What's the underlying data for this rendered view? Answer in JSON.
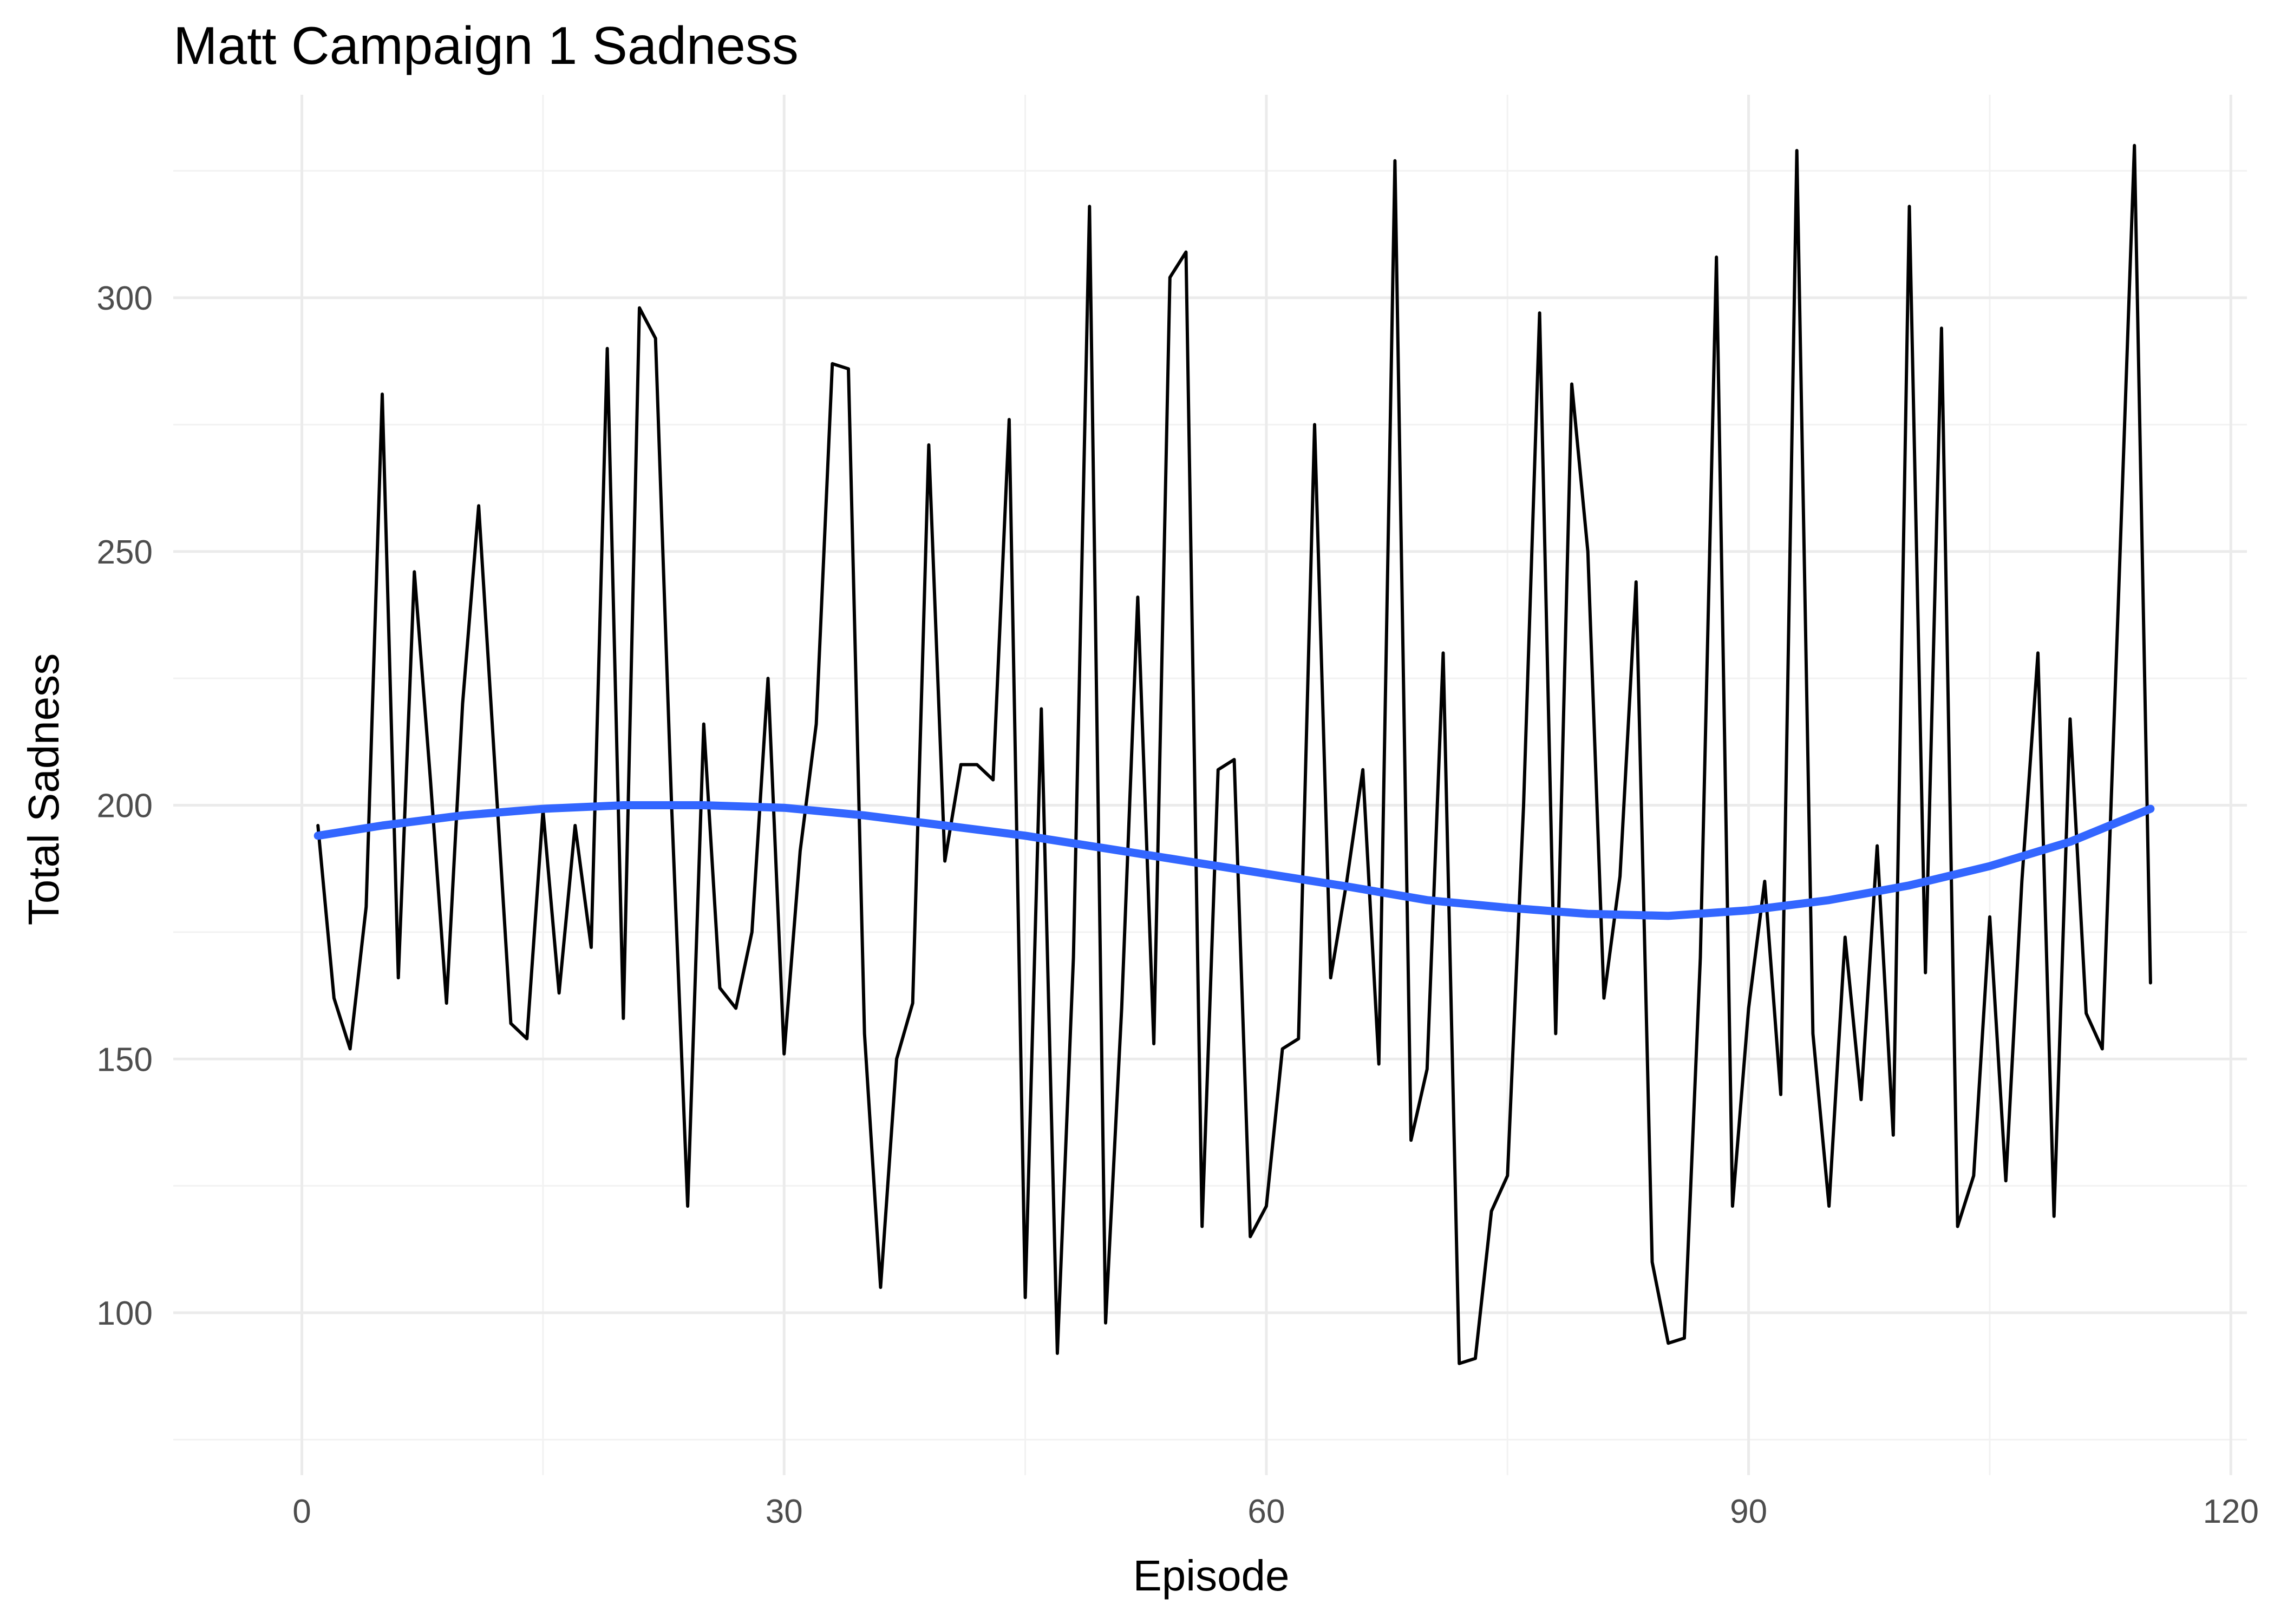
{
  "chart_data": {
    "type": "line",
    "title": "Matt Campaign 1 Sadness",
    "xlabel": "Episode",
    "ylabel": "Total Sadness",
    "xlim": [
      -8,
      121
    ],
    "ylim": [
      68,
      340
    ],
    "xticks": [
      0,
      30,
      60,
      90,
      120
    ],
    "yticks": [
      100,
      150,
      200,
      250,
      300
    ],
    "grid": true,
    "legend": "none",
    "series": [
      {
        "role": "raw",
        "color": "#000000",
        "x": [
          1,
          2,
          3,
          4,
          5,
          6,
          7,
          8,
          9,
          10,
          11,
          12,
          13,
          14,
          15,
          16,
          17,
          18,
          19,
          20,
          21,
          22,
          23,
          24,
          25,
          26,
          27,
          28,
          29,
          30,
          31,
          32,
          33,
          34,
          35,
          36,
          37,
          38,
          39,
          40,
          41,
          42,
          43,
          44,
          45,
          46,
          47,
          48,
          49,
          50,
          51,
          52,
          53,
          54,
          55,
          56,
          57,
          58,
          59,
          60,
          61,
          62,
          63,
          64,
          65,
          66,
          67,
          68,
          69,
          70,
          71,
          72,
          73,
          74,
          75,
          76,
          77,
          78,
          79,
          80,
          81,
          82,
          83,
          84,
          85,
          86,
          87,
          88,
          89,
          90,
          91,
          92,
          93,
          94,
          95,
          96,
          97,
          98,
          99,
          100,
          101,
          102,
          103,
          104,
          105,
          106,
          107,
          108,
          109,
          110,
          111,
          112,
          113,
          114,
          115
        ],
        "y": [
          196,
          162,
          152,
          180,
          281,
          166,
          246,
          205,
          161,
          220,
          259,
          208,
          157,
          154,
          199,
          163,
          196,
          172,
          290,
          158,
          298,
          292,
          200,
          121,
          216,
          164,
          160,
          175,
          225,
          151,
          191,
          216,
          287,
          286,
          155,
          105,
          150,
          161,
          271,
          189,
          208,
          208,
          205,
          276,
          103,
          219,
          92,
          170,
          318,
          98,
          160,
          241,
          153,
          304,
          309,
          117,
          207,
          209,
          115,
          121,
          152,
          154,
          275,
          166,
          185,
          207,
          149,
          327,
          134,
          148,
          230,
          90,
          91,
          120,
          127,
          200,
          297,
          155,
          283,
          250,
          162,
          186,
          244,
          110,
          94,
          95,
          170,
          308,
          121,
          160,
          185,
          143,
          329,
          155,
          121,
          174,
          142,
          192,
          135,
          318,
          167,
          294,
          117,
          127,
          178,
          126,
          185,
          230,
          119,
          217,
          159,
          152,
          240,
          330,
          165
        ]
      },
      {
        "role": "smooth",
        "color": "#3366ff",
        "x": [
          1,
          5,
          10,
          15,
          20,
          25,
          30,
          35,
          40,
          45,
          50,
          55,
          60,
          65,
          70,
          75,
          80,
          85,
          90,
          95,
          100,
          105,
          110,
          115
        ],
        "y": [
          194,
          196,
          198,
          199.3,
          200,
          200,
          199.5,
          198,
          196,
          194,
          191.5,
          189,
          186.5,
          184,
          181.3,
          179.8,
          178.6,
          178.2,
          179.3,
          181.3,
          184.2,
          188,
          192.8,
          199.3
        ]
      }
    ]
  }
}
